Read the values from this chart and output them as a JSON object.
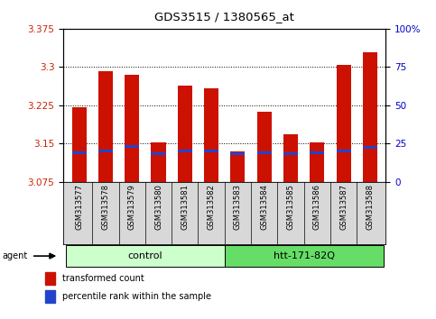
{
  "title": "GDS3515 / 1380565_at",
  "samples": [
    "GSM313577",
    "GSM313578",
    "GSM313579",
    "GSM313580",
    "GSM313581",
    "GSM313582",
    "GSM313583",
    "GSM313584",
    "GSM313585",
    "GSM313586",
    "GSM313587",
    "GSM313588"
  ],
  "groups": [
    "control",
    "control",
    "control",
    "control",
    "control",
    "control",
    "htt-171-82Q",
    "htt-171-82Q",
    "htt-171-82Q",
    "htt-171-82Q",
    "htt-171-82Q",
    "htt-171-82Q"
  ],
  "red_values": [
    3.222,
    3.292,
    3.284,
    3.153,
    3.263,
    3.259,
    3.135,
    3.212,
    3.168,
    3.152,
    3.305,
    3.328
  ],
  "blue_values": [
    3.132,
    3.136,
    3.144,
    3.13,
    3.136,
    3.136,
    3.13,
    3.132,
    3.13,
    3.132,
    3.136,
    3.142
  ],
  "ymin": 3.075,
  "ymax": 3.375,
  "yticks": [
    3.075,
    3.15,
    3.225,
    3.3,
    3.375
  ],
  "ytick_labels": [
    "3.075",
    "3.15",
    "3.225",
    "3.3",
    "3.375"
  ],
  "right_yticks": [
    0,
    25,
    50,
    75,
    100
  ],
  "right_ytick_labels": [
    "0",
    "25",
    "50",
    "75",
    "100%"
  ],
  "control_color_light": "#ccffcc",
  "control_color_dark": "#66dd66",
  "bar_color": "#cc1100",
  "blue_color": "#2244cc",
  "bar_width": 0.55,
  "agent_label": "agent",
  "legend_items": [
    {
      "color": "#cc1100",
      "label": "transformed count"
    },
    {
      "color": "#2244cc",
      "label": "percentile rank within the sample"
    }
  ],
  "background_color": "#ffffff",
  "plot_bg": "#ffffff",
  "tick_label_color_left": "#cc2200",
  "tick_label_color_right": "#0000cc",
  "sample_label_bg": "#d8d8d8",
  "gridline_ticks": [
    3.15,
    3.225,
    3.3
  ]
}
